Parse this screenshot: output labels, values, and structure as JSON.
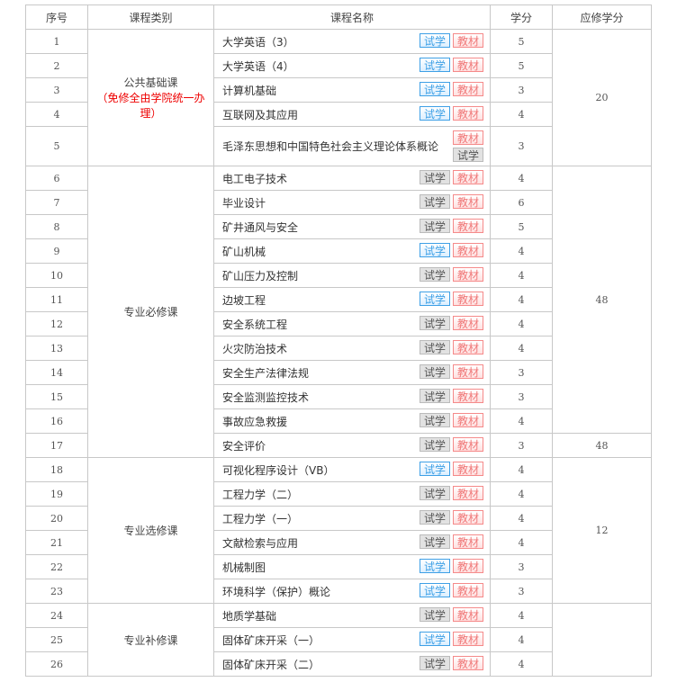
{
  "headers": [
    "序号",
    "课程类别",
    "课程名称",
    "学分",
    "应修学分"
  ],
  "buttons": {
    "trial": "试学",
    "textbook": "教材"
  },
  "colors": {
    "trial_active": "#3ea0e6",
    "trial_inactive": "#e2e2e2",
    "textbook": "#f07878",
    "note": "#e00000"
  },
  "groups": [
    {
      "category": "公共基础课",
      "note": "（免修全由学院统一办理）",
      "required": "20",
      "rows": [
        {
          "no": "1",
          "name": "大学英语（3）",
          "credit": "5",
          "trial_active": true
        },
        {
          "no": "2",
          "name": "大学英语（4）",
          "credit": "5",
          "trial_active": true
        },
        {
          "no": "3",
          "name": "计算机基础",
          "credit": "3",
          "trial_active": true
        },
        {
          "no": "4",
          "name": "互联网及其应用",
          "credit": "4",
          "trial_active": true
        },
        {
          "no": "5",
          "name": "毛泽东思想和中国特色社会主义理论体系概论",
          "credit": "3",
          "trial_active": false,
          "stacked": true
        }
      ]
    },
    {
      "category": "专业必修课",
      "required": "48",
      "extra_required": "48",
      "rows": [
        {
          "no": "6",
          "name": "电工电子技术",
          "credit": "4",
          "trial_active": false
        },
        {
          "no": "7",
          "name": "毕业设计",
          "credit": "6",
          "trial_active": false
        },
        {
          "no": "8",
          "name": "矿井通风与安全",
          "credit": "5",
          "trial_active": false
        },
        {
          "no": "9",
          "name": "矿山机械",
          "credit": "4",
          "trial_active": true
        },
        {
          "no": "10",
          "name": "矿山压力及控制",
          "credit": "4",
          "trial_active": false
        },
        {
          "no": "11",
          "name": "边坡工程",
          "credit": "4",
          "trial_active": true
        },
        {
          "no": "12",
          "name": "安全系统工程",
          "credit": "4",
          "trial_active": false
        },
        {
          "no": "13",
          "name": "火灾防治技术",
          "credit": "4",
          "trial_active": false
        },
        {
          "no": "14",
          "name": "安全生产法律法规",
          "credit": "3",
          "trial_active": false
        },
        {
          "no": "15",
          "name": "安全监测监控技术",
          "credit": "3",
          "trial_active": false
        },
        {
          "no": "16",
          "name": "事故应急救援",
          "credit": "4",
          "trial_active": false
        },
        {
          "no": "17",
          "name": "安全评价",
          "credit": "3",
          "trial_active": false
        }
      ]
    },
    {
      "category": "专业选修课",
      "required": "12",
      "rows": [
        {
          "no": "18",
          "name": "可视化程序设计（VB）",
          "credit": "4",
          "trial_active": true
        },
        {
          "no": "19",
          "name": "工程力学（二）",
          "credit": "4",
          "trial_active": false
        },
        {
          "no": "20",
          "name": "工程力学（一）",
          "credit": "4",
          "trial_active": false
        },
        {
          "no": "21",
          "name": "文献检索与应用",
          "credit": "4",
          "trial_active": false
        },
        {
          "no": "22",
          "name": "机械制图",
          "credit": "3",
          "trial_active": true
        },
        {
          "no": "23",
          "name": "环境科学（保护）概论",
          "credit": "3",
          "trial_active": true
        }
      ]
    },
    {
      "category": "专业补修课",
      "rows": [
        {
          "no": "24",
          "name": "地质学基础",
          "credit": "4",
          "trial_active": false
        },
        {
          "no": "25",
          "name": "固体矿床开采（一）",
          "credit": "4",
          "trial_active": true
        },
        {
          "no": "26",
          "name": "固体矿床开采（二）",
          "credit": "4",
          "trial_active": false
        }
      ]
    }
  ]
}
